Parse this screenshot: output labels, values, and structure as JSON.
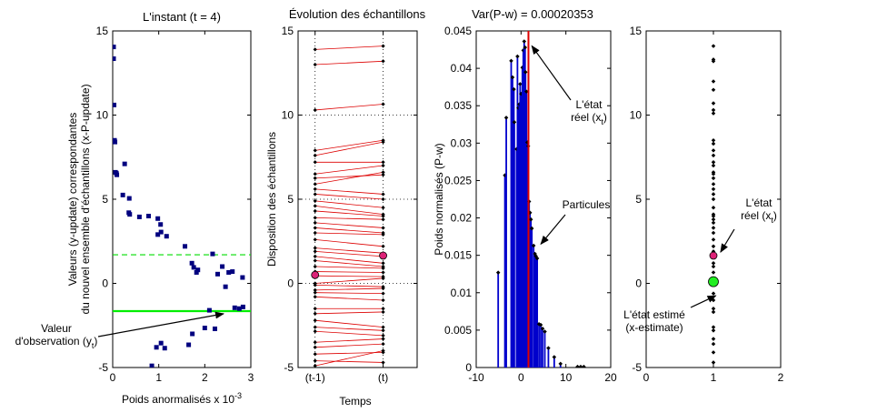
{
  "chart_data": [
    {
      "type": "scatter",
      "title": "L'instant (t = 4)",
      "xlabel": "Poids anormalisés x 10",
      "xlabel_exponent": "-3",
      "ylabel_lines": [
        "Valeurs (y-update) correspondantes",
        "du nouvel ensemble d'échantillons (x-P-update)"
      ],
      "xlim": [
        0,
        3
      ],
      "ylim": [
        -5,
        15
      ],
      "xticks": [
        0,
        1,
        2,
        3
      ],
      "yticks": [
        -5,
        0,
        5,
        10,
        15
      ],
      "marker_color": "#00007f",
      "points": [
        {
          "x": 0.02,
          "y": 14.05
        },
        {
          "x": 0.02,
          "y": 13.35
        },
        {
          "x": 0.03,
          "y": 10.6
        },
        {
          "x": 0.04,
          "y": 8.5
        },
        {
          "x": 0.05,
          "y": 8.4
        },
        {
          "x": 0.06,
          "y": 6.6
        },
        {
          "x": 0.08,
          "y": 6.55
        },
        {
          "x": 0.09,
          "y": 6.45
        },
        {
          "x": 0.26,
          "y": 7.1
        },
        {
          "x": 0.22,
          "y": 5.25
        },
        {
          "x": 0.36,
          "y": 5.05
        },
        {
          "x": 0.35,
          "y": 4.2
        },
        {
          "x": 0.37,
          "y": 4.1
        },
        {
          "x": 0.58,
          "y": 3.95
        },
        {
          "x": 0.78,
          "y": 4.0
        },
        {
          "x": 0.98,
          "y": 3.85
        },
        {
          "x": 1.04,
          "y": 3.5
        },
        {
          "x": 1.05,
          "y": 3.05
        },
        {
          "x": 0.98,
          "y": 2.9
        },
        {
          "x": 1.17,
          "y": 2.8
        },
        {
          "x": 1.57,
          "y": 2.2
        },
        {
          "x": 1.72,
          "y": 1.2
        },
        {
          "x": 1.76,
          "y": 0.95
        },
        {
          "x": 1.85,
          "y": 0.8
        },
        {
          "x": 1.82,
          "y": 0.65
        },
        {
          "x": 2.17,
          "y": 1.75
        },
        {
          "x": 2.28,
          "y": 0.55
        },
        {
          "x": 2.52,
          "y": 0.65
        },
        {
          "x": 2.38,
          "y": 1.0
        },
        {
          "x": 2.6,
          "y": 0.7
        },
        {
          "x": 2.82,
          "y": 0.35
        },
        {
          "x": 2.45,
          "y": -0.2
        },
        {
          "x": 2.65,
          "y": -1.45
        },
        {
          "x": 2.75,
          "y": -1.5
        },
        {
          "x": 2.83,
          "y": -1.4
        },
        {
          "x": 2.1,
          "y": -1.6
        },
        {
          "x": 2.22,
          "y": -2.7
        },
        {
          "x": 2.0,
          "y": -2.65
        },
        {
          "x": 1.73,
          "y": -3.0
        },
        {
          "x": 1.65,
          "y": -3.65
        },
        {
          "x": 0.95,
          "y": -3.8
        },
        {
          "x": 1.05,
          "y": -3.55
        },
        {
          "x": 1.13,
          "y": -3.85
        },
        {
          "x": 0.85,
          "y": -4.9
        }
      ],
      "lines": [
        {
          "y": 1.7,
          "color": "#00dd00",
          "style": "dashed"
        },
        {
          "y": -1.65,
          "color": "#00ee00",
          "style": "solid"
        }
      ],
      "annotations": [
        {
          "lines": [
            "Valeur",
            "d'observation (y"
          ],
          "subscript": "t",
          "suffix": ")",
          "x": 1.5,
          "y": -1.75
        }
      ]
    },
    {
      "type": "line",
      "title": "Évolution des échantillons",
      "xlabel": "Temps",
      "ylabel": "Disposition des échantillons",
      "xlim": [
        -0.25,
        1.5
      ],
      "ylim": [
        -5,
        15
      ],
      "xtick_labels": [
        {
          "x": 0,
          "label": "(t-1)"
        },
        {
          "x": 1,
          "label": "(t)"
        }
      ],
      "yticks": [
        -5,
        0,
        5,
        10,
        15
      ],
      "grid": "dotted",
      "line_color": "#dd0000",
      "pairs": [
        [
          13.9,
          14.1
        ],
        [
          13.0,
          13.2
        ],
        [
          10.3,
          10.65
        ],
        [
          7.9,
          8.5
        ],
        [
          7.6,
          8.4
        ],
        [
          7.2,
          7.2
        ],
        [
          6.5,
          7.0
        ],
        [
          6.25,
          6.45
        ],
        [
          5.9,
          6.6
        ],
        [
          5.6,
          5.3
        ],
        [
          5.3,
          5.0
        ],
        [
          4.9,
          4.5
        ],
        [
          4.6,
          4.1
        ],
        [
          4.3,
          4.0
        ],
        [
          3.9,
          3.8
        ],
        [
          3.6,
          3.3
        ],
        [
          3.3,
          3.0
        ],
        [
          3.0,
          2.9
        ],
        [
          2.6,
          2.2
        ],
        [
          2.1,
          1.8
        ],
        [
          1.9,
          1.6
        ],
        [
          1.6,
          1.2
        ],
        [
          1.35,
          1.0
        ],
        [
          1.0,
          0.9
        ],
        [
          0.7,
          0.65
        ],
        [
          0.45,
          0.4
        ],
        [
          0.0,
          0.3
        ],
        [
          -0.1,
          -0.2
        ],
        [
          -0.4,
          -0.3
        ],
        [
          -0.55,
          -0.6
        ],
        [
          -0.8,
          -1.0
        ],
        [
          -1.5,
          -1.5
        ],
        [
          -1.8,
          -1.7
        ],
        [
          -2.2,
          -2.6
        ],
        [
          -2.6,
          -2.8
        ],
        [
          -2.85,
          -3.1
        ],
        [
          -3.5,
          -3.3
        ],
        [
          -3.8,
          -3.6
        ],
        [
          -4.2,
          -4.1
        ],
        [
          -4.6,
          -4.7
        ],
        [
          -4.9,
          -4.0
        ]
      ],
      "markers": [
        {
          "x": 0,
          "y": 0.5,
          "color": "#dd2277"
        },
        {
          "x": 1,
          "y": 1.65,
          "color": "#dd2277"
        }
      ]
    },
    {
      "type": "bar",
      "title": "Var(P-w) = 0.00020353",
      "ylabel": "Poids normalisés (P-w)",
      "xlim": [
        -10,
        20
      ],
      "ylim": [
        0,
        0.045
      ],
      "xticks": [
        -10,
        0,
        10,
        20
      ],
      "yticks": [
        0,
        0.005,
        0.01,
        0.015,
        0.02,
        0.025,
        0.03,
        0.035,
        0.04,
        0.045
      ],
      "stem_color": "#0000cc",
      "stems": [
        {
          "x": -5.1,
          "y": 0.0127
        },
        {
          "x": -3.6,
          "y": 0.0257
        },
        {
          "x": -3.3,
          "y": 0.0334
        },
        {
          "x": -2.2,
          "y": 0.041
        },
        {
          "x": -1.9,
          "y": 0.0388
        },
        {
          "x": -1.6,
          "y": 0.0372
        },
        {
          "x": -1.5,
          "y": 0.0328
        },
        {
          "x": -1.0,
          "y": 0.0292
        },
        {
          "x": -0.8,
          "y": 0.0416
        },
        {
          "x": -0.6,
          "y": 0.0347
        },
        {
          "x": -0.4,
          "y": 0.0352
        },
        {
          "x": -0.2,
          "y": 0.0379
        },
        {
          "x": 0.0,
          "y": 0.0366
        },
        {
          "x": 0.3,
          "y": 0.0401
        },
        {
          "x": 0.5,
          "y": 0.0424
        },
        {
          "x": 0.7,
          "y": 0.0436
        },
        {
          "x": 0.9,
          "y": 0.0428
        },
        {
          "x": 1.0,
          "y": 0.0395
        },
        {
          "x": 1.2,
          "y": 0.0369
        },
        {
          "x": 1.4,
          "y": 0.0301
        },
        {
          "x": 1.6,
          "y": 0.0296
        },
        {
          "x": 1.8,
          "y": 0.0222
        },
        {
          "x": 2.0,
          "y": 0.0207
        },
        {
          "x": 2.2,
          "y": 0.0198
        },
        {
          "x": 2.4,
          "y": 0.0186
        },
        {
          "x": 2.8,
          "y": 0.0163
        },
        {
          "x": 3.1,
          "y": 0.0152
        },
        {
          "x": 3.3,
          "y": 0.0149
        },
        {
          "x": 3.6,
          "y": 0.0146
        },
        {
          "x": 4.0,
          "y": 0.0058
        },
        {
          "x": 4.4,
          "y": 0.0057
        },
        {
          "x": 4.8,
          "y": 0.0052
        },
        {
          "x": 5.3,
          "y": 0.0048
        },
        {
          "x": 6.1,
          "y": 0.0026
        },
        {
          "x": 7.4,
          "y": 0.0014
        },
        {
          "x": 8.8,
          "y": 0.0005
        },
        {
          "x": 12.6,
          "y": 0.0001
        },
        {
          "x": 13.3,
          "y": 0.0001
        },
        {
          "x": 14.0,
          "y": 0.0001
        }
      ],
      "reference_lines": [
        {
          "x": 1.65,
          "color": "#dd0000"
        }
      ],
      "annotations": [
        {
          "lines": [
            "L'état",
            "réel (x"
          ],
          "subscript": "t",
          "suffix": ")",
          "x": 2.0,
          "y": 0.043
        },
        {
          "lines": [
            "Particules"
          ],
          "x": 3.8,
          "y": 0.0165
        }
      ]
    },
    {
      "type": "scatter",
      "title": "",
      "xlim": [
        0,
        2
      ],
      "ylim": [
        -5,
        15
      ],
      "xticks": [
        0,
        1,
        2
      ],
      "yticks": [
        -5,
        0,
        5,
        10,
        15
      ],
      "marker_color": "#000000",
      "y_at_x1": [
        14.1,
        13.3,
        13.2,
        12.0,
        11.5,
        10.7,
        10.3,
        10.1,
        8.5,
        8.3,
        7.9,
        7.6,
        7.2,
        7.0,
        6.6,
        6.5,
        6.25,
        5.9,
        5.6,
        5.3,
        5.0,
        4.5,
        4.1,
        4.0,
        3.8,
        3.6,
        3.3,
        3.0,
        2.6,
        2.2,
        1.9,
        1.2,
        1.0,
        0.65,
        0.3,
        -0.6,
        -1.0,
        -1.5,
        -1.7,
        -2.6,
        -2.8,
        -3.3,
        -3.6,
        -4.1,
        -4.7
      ],
      "markers": [
        {
          "x": 1,
          "y": 1.65,
          "color": "#dd2277"
        },
        {
          "x": 1,
          "y": 0.1,
          "color": "#22ee22"
        }
      ],
      "annotations": [
        {
          "lines": [
            "L'état",
            "réel (x"
          ],
          "subscript": "t",
          "suffix": ")",
          "x": 1.08,
          "y": 1.75
        },
        {
          "lines": [
            "L'état estimé",
            "(x-estimate)"
          ],
          "x": 0.9,
          "y": -0.3
        }
      ]
    }
  ]
}
